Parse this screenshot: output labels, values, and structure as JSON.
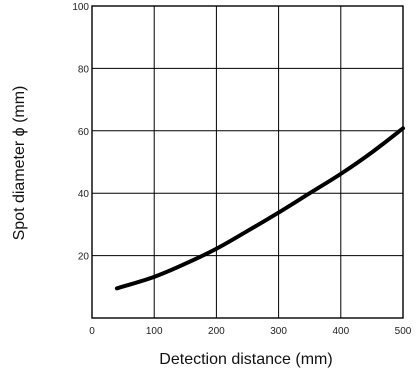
{
  "chart_data": {
    "type": "line",
    "title": "",
    "xlabel": "Detection distance (mm)",
    "ylabel": "Spot diameter ϕ (mm)",
    "xlim": [
      0,
      500
    ],
    "ylim": [
      0,
      100
    ],
    "x_ticks": [
      0,
      100,
      200,
      300,
      400,
      500
    ],
    "y_ticks": [
      20,
      40,
      60,
      80,
      100
    ],
    "x_tick_labels": [
      "0",
      "100",
      "200",
      "300",
      "400",
      "500"
    ],
    "y_tick_labels": [
      "20",
      "40",
      "60",
      "80",
      "100"
    ],
    "grid": true,
    "legend": "none",
    "series": [
      {
        "x": [
          40,
          100,
          150,
          200,
          250,
          300,
          350,
          400,
          450,
          500
        ],
        "y": [
          9.5,
          13.2,
          17.4,
          22.2,
          27.9,
          33.8,
          40,
          46.2,
          53.1,
          60.8
        ]
      }
    ]
  }
}
